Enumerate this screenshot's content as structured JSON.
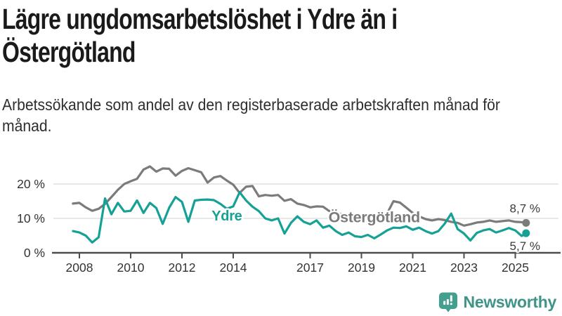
{
  "header": {
    "title": "Lägre ungdomsarbetslöshet i Ydre än i Östergötland",
    "subtitle": "Arbetssökande som andel av den registerbaserade arbetskraften månad för månad."
  },
  "footer": {
    "brand": "Newsworthy",
    "brand_color": "#3f9488",
    "icon_color": "#43a08f"
  },
  "chart_data": {
    "type": "line",
    "x_unit": "decimal-year (monthly series, Q-resolution estimates)",
    "x_range": [
      2007.75,
      2025.42
    ],
    "ylim": [
      0,
      27
    ],
    "grid": true,
    "y_axis": {
      "ticks": [
        {
          "value": 0,
          "label": "0 %"
        },
        {
          "value": 10,
          "label": "10 %"
        },
        {
          "value": 20,
          "label": "20 %"
        }
      ]
    },
    "x_axis": {
      "ticks": [
        {
          "year": 2008,
          "label": "2008"
        },
        {
          "year": 2010,
          "label": "2010"
        },
        {
          "year": 2012,
          "label": "2012"
        },
        {
          "year": 2014,
          "label": "2014"
        },
        {
          "year": 2017,
          "label": "2017"
        },
        {
          "year": 2019,
          "label": "2019"
        },
        {
          "year": 2021,
          "label": "2021"
        },
        {
          "year": 2023,
          "label": "2023"
        },
        {
          "year": 2025,
          "label": "2025"
        }
      ]
    },
    "style": {
      "grid_color": "#d9d9d9",
      "axis_color": "#4d4d4d",
      "tick_text_color": "#333333",
      "end_label_color": "#3a3a3a"
    },
    "x": [
      2007.75,
      2008,
      2008.25,
      2008.5,
      2008.75,
      2009,
      2009.25,
      2009.5,
      2009.75,
      2010,
      2010.25,
      2010.5,
      2010.75,
      2011,
      2011.25,
      2011.5,
      2011.75,
      2012,
      2012.25,
      2012.5,
      2012.75,
      2013,
      2013.25,
      2013.5,
      2013.75,
      2014,
      2014.25,
      2014.5,
      2014.75,
      2015,
      2015.25,
      2015.5,
      2015.75,
      2016,
      2016.25,
      2016.5,
      2016.75,
      2017,
      2017.25,
      2017.5,
      2017.75,
      2018,
      2018.25,
      2018.5,
      2018.75,
      2019,
      2019.25,
      2019.5,
      2019.75,
      2020,
      2020.25,
      2020.5,
      2020.75,
      2021,
      2021.25,
      2021.5,
      2021.75,
      2022,
      2022.25,
      2022.5,
      2022.75,
      2023,
      2023.25,
      2023.5,
      2023.75,
      2024,
      2024.25,
      2024.5,
      2024.75,
      2025,
      2025.25,
      2025.42
    ],
    "series": [
      {
        "id": "ydre",
        "name": "Ydre",
        "color": "#15a195",
        "end_label": "5,7 %",
        "end_value": 5.7,
        "end_label_position": "below",
        "inline_label": {
          "text": "Ydre",
          "anchor_year": 2013.75,
          "anchor_pct": 10.8,
          "font_size": 20
        },
        "values": [
          6.3,
          5.9,
          5.0,
          3.0,
          4.5,
          15.8,
          11.2,
          14.5,
          12.0,
          12.2,
          15.2,
          11.6,
          14.5,
          13.0,
          8.4,
          13.1,
          16.2,
          14.8,
          9.0,
          15.2,
          15.4,
          15.5,
          15.3,
          14.2,
          12.8,
          13.5,
          17.6,
          15.2,
          13.4,
          12.1,
          10.0,
          9.4,
          10.0,
          5.6,
          8.7,
          10.6,
          9.0,
          8.3,
          9.4,
          7.3,
          7.9,
          6.3,
          5.2,
          5.9,
          4.8,
          4.6,
          5.2,
          4.2,
          5.3,
          6.5,
          7.3,
          7.2,
          7.7,
          6.7,
          7.3,
          6.3,
          5.6,
          6.3,
          8.5,
          11.4,
          6.9,
          5.6,
          3.6,
          5.8,
          6.5,
          6.9,
          5.9,
          6.5,
          7.2,
          6.5,
          4.9,
          5.7
        ]
      },
      {
        "id": "ostergotland",
        "name": "Östergötland",
        "color": "#7b7b7b",
        "end_label": "8,7 %",
        "end_value": 8.7,
        "end_label_position": "above",
        "inline_label": {
          "text": "Östergötland",
          "anchor_year": 2019.5,
          "anchor_pct": 10.3,
          "font_size": 21.5
        },
        "values": [
          14.3,
          14.5,
          13.2,
          12.2,
          12.8,
          14.2,
          16.2,
          18.3,
          20.0,
          20.8,
          21.5,
          24.2,
          25.1,
          23.6,
          24.5,
          24.4,
          22.4,
          23.8,
          24.6,
          24.0,
          23.4,
          20.4,
          21.9,
          22.3,
          21.0,
          19.8,
          17.4,
          19.2,
          19.4,
          16.4,
          16.8,
          16.6,
          16.8,
          15.1,
          15.6,
          14.3,
          13.9,
          13.2,
          13.5,
          13.4,
          12.1,
          11.6,
          11.2,
          10.8,
          10.3,
          9.9,
          9.7,
          9.9,
          10.4,
          11.4,
          15.0,
          14.6,
          13.1,
          11.6,
          10.6,
          9.8,
          9.4,
          9.8,
          9.5,
          9.0,
          8.7,
          7.9,
          8.3,
          8.8,
          9.0,
          9.4,
          9.0,
          9.2,
          9.4,
          9.0,
          8.9,
          8.7
        ]
      }
    ]
  }
}
